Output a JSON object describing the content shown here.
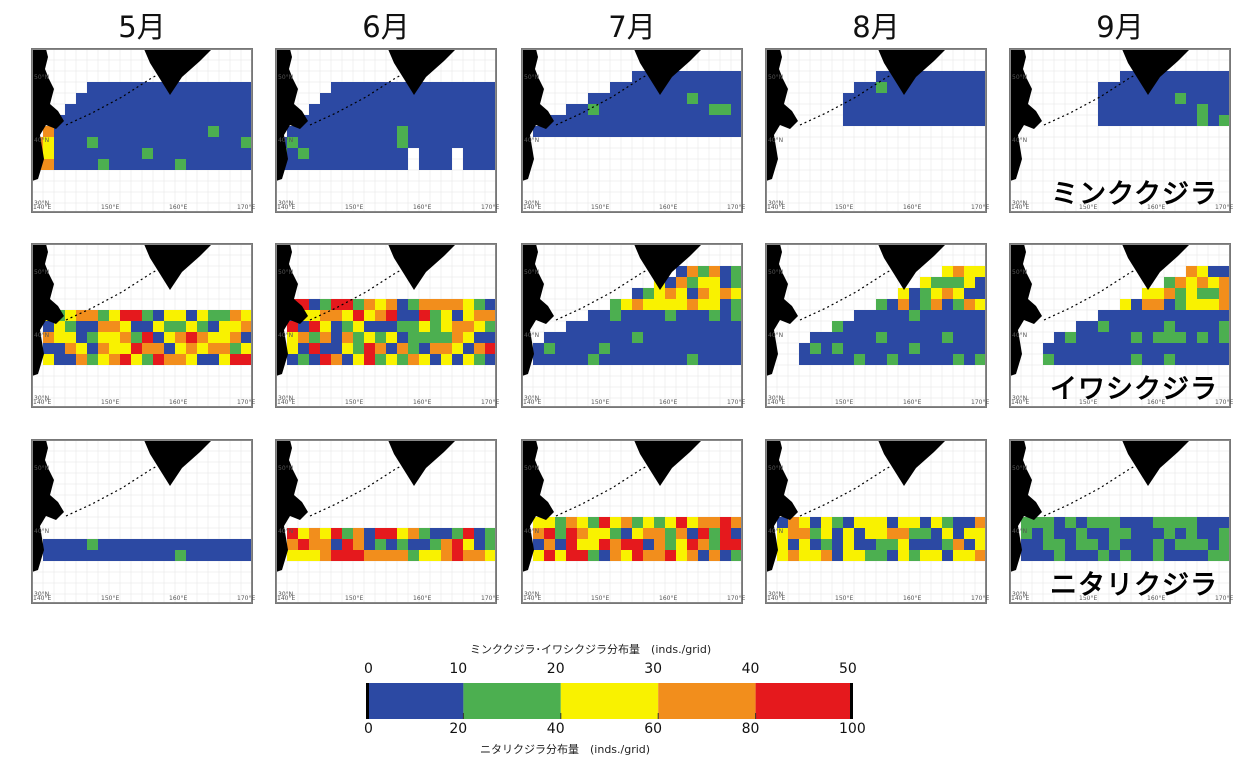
{
  "months": [
    "5月",
    "6月",
    "7月",
    "8月",
    "9月"
  ],
  "species": [
    "ミンククジラ",
    "イワシクジラ",
    "ニタリクジラ"
  ],
  "axis_ticks": {
    "lat": [
      "50°N",
      "40°N",
      "30°N"
    ],
    "lon": [
      "140°E",
      "150°E",
      "160°E",
      "170°E"
    ]
  },
  "legend": {
    "top_title": "ミンククジラ･イワシクジラ分布量　(inds./grid)",
    "bottom_title": "ニタリクジラ分布量　(inds./grid)",
    "top_values": [
      "0",
      "10",
      "20",
      "30",
      "40",
      "50"
    ],
    "bottom_values": [
      "0",
      "20",
      "40",
      "60",
      "80",
      "100"
    ],
    "colors": [
      "#2c49a3",
      "#4caf50",
      "#f9f200",
      "#f28e1c",
      "#e5191d"
    ]
  }
}
